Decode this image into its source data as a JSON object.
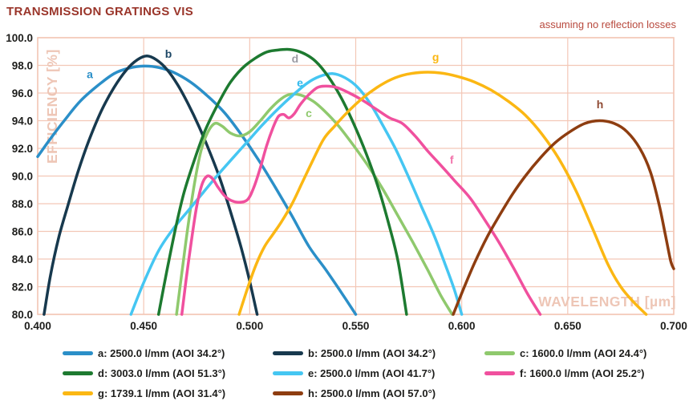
{
  "title": "TRANSMISSION GRATINGS VIS",
  "annotation": "assuming no reflection losses",
  "colors": {
    "title": "#9a352a",
    "annotation": "#b8493d",
    "grid": "#f3c7b6",
    "axis_title": "#eec6b6",
    "tick_label": "#1d1d1b"
  },
  "chart_data": {
    "type": "line",
    "title": "TRANSMISSION GRATINGS VIS",
    "annotation": "assuming no reflection losses",
    "xlabel": "WAVELENGTH [µm]",
    "ylabel": "EFFICIENCY [%]",
    "xlim": [
      0.4,
      0.7
    ],
    "ylim": [
      80.0,
      100.0
    ],
    "grid": true,
    "legend_position": "bottom",
    "x_ticks": [
      "0.400",
      "0.450",
      "0.500",
      "0.550",
      "0.600",
      "0.650",
      "0.700"
    ],
    "x_tick_values": [
      0.4,
      0.45,
      0.5,
      0.55,
      0.6,
      0.65,
      0.7
    ],
    "y_ticks": [
      "100.0",
      "98.0",
      "96.0",
      "94.0",
      "92.0",
      "90.0",
      "88.0",
      "86.0",
      "84.0",
      "82.0",
      "80.0"
    ],
    "y_tick_values": [
      100,
      98,
      96,
      94,
      92,
      90,
      88,
      86,
      84,
      82,
      80
    ],
    "series": [
      {
        "letter": "a",
        "name": "a: 2500.0 l/mm (AOI 34.2°)",
        "color": "#2B8FC8",
        "label_color": "#2B8FC8",
        "label_x": 0.4246,
        "label_y": 97.35,
        "points": [
          [
            0.4,
            91.4
          ],
          [
            0.406,
            92.7
          ],
          [
            0.413,
            94.1
          ],
          [
            0.42,
            95.4
          ],
          [
            0.428,
            96.5
          ],
          [
            0.436,
            97.4
          ],
          [
            0.443,
            97.8
          ],
          [
            0.45,
            97.95
          ],
          [
            0.457,
            97.85
          ],
          [
            0.464,
            97.5
          ],
          [
            0.472,
            96.8
          ],
          [
            0.48,
            95.8
          ],
          [
            0.488,
            94.6
          ],
          [
            0.496,
            93.0
          ],
          [
            0.504,
            91.2
          ],
          [
            0.512,
            89.2
          ],
          [
            0.52,
            87.1
          ],
          [
            0.528,
            84.9
          ],
          [
            0.536,
            83.2
          ],
          [
            0.544,
            81.4
          ],
          [
            0.55,
            80.0
          ]
        ]
      },
      {
        "letter": "b",
        "name": "b: 2500.0 l/mm (AOI 34.2°)",
        "color": "#17394E",
        "label_color": "#1D4766",
        "label_x": 0.4617,
        "label_y": 98.85,
        "points": [
          [
            0.403,
            80.0
          ],
          [
            0.406,
            82.8
          ],
          [
            0.41,
            85.6
          ],
          [
            0.4145,
            88.0
          ],
          [
            0.419,
            90.3
          ],
          [
            0.424,
            92.5
          ],
          [
            0.43,
            94.7
          ],
          [
            0.436,
            96.4
          ],
          [
            0.442,
            97.7
          ],
          [
            0.447,
            98.4
          ],
          [
            0.4515,
            98.68
          ],
          [
            0.456,
            98.4
          ],
          [
            0.461,
            97.7
          ],
          [
            0.466,
            96.6
          ],
          [
            0.471,
            95.2
          ],
          [
            0.476,
            93.6
          ],
          [
            0.481,
            91.8
          ],
          [
            0.486,
            89.8
          ],
          [
            0.491,
            87.4
          ],
          [
            0.496,
            84.8
          ],
          [
            0.5,
            82.4
          ],
          [
            0.5035,
            80.0
          ]
        ]
      },
      {
        "letter": "c",
        "name": "c: 1600.0 l/mm (AOI 24.4°)",
        "color": "#8FC96D",
        "label_color": "#8FC96D",
        "label_x": 0.5279,
        "label_y": 94.55,
        "points": [
          [
            0.4655,
            80.0
          ],
          [
            0.468,
            83.0
          ],
          [
            0.471,
            86.5
          ],
          [
            0.474,
            89.5
          ],
          [
            0.477,
            91.8
          ],
          [
            0.48,
            93.1
          ],
          [
            0.4835,
            93.8
          ],
          [
            0.487,
            93.6
          ],
          [
            0.491,
            93.1
          ],
          [
            0.4955,
            92.9
          ],
          [
            0.5,
            93.2
          ],
          [
            0.505,
            94.0
          ],
          [
            0.51,
            94.9
          ],
          [
            0.515,
            95.6
          ],
          [
            0.519,
            95.9
          ],
          [
            0.524,
            95.85
          ],
          [
            0.53,
            95.4
          ],
          [
            0.536,
            94.6
          ],
          [
            0.542,
            93.6
          ],
          [
            0.549,
            92.2
          ],
          [
            0.556,
            90.7
          ],
          [
            0.563,
            89.0
          ],
          [
            0.57,
            87.1
          ],
          [
            0.577,
            85.2
          ],
          [
            0.584,
            83.2
          ],
          [
            0.59,
            81.4
          ],
          [
            0.5955,
            80.0
          ]
        ]
      },
      {
        "letter": "e",
        "name": "e: 2500.0 l/mm (AOI 41.7°)",
        "color": "#45C6F2",
        "label_color": "#2FB9EE",
        "label_x": 0.5237,
        "label_y": 96.75,
        "points": [
          [
            0.444,
            80.0
          ],
          [
            0.45,
            82.3
          ],
          [
            0.457,
            84.6
          ],
          [
            0.464,
            86.2
          ],
          [
            0.471,
            87.5
          ],
          [
            0.478,
            88.8
          ],
          [
            0.4845,
            90.0
          ],
          [
            0.492,
            91.3
          ],
          [
            0.499,
            92.5
          ],
          [
            0.506,
            93.7
          ],
          [
            0.513,
            94.8
          ],
          [
            0.52,
            95.8
          ],
          [
            0.527,
            96.7
          ],
          [
            0.533,
            97.2
          ],
          [
            0.539,
            97.4
          ],
          [
            0.545,
            97.1
          ],
          [
            0.551,
            96.4
          ],
          [
            0.557,
            95.2
          ],
          [
            0.563,
            93.6
          ],
          [
            0.569,
            91.9
          ],
          [
            0.575,
            89.9
          ],
          [
            0.581,
            87.8
          ],
          [
            0.587,
            85.7
          ],
          [
            0.592,
            83.7
          ],
          [
            0.5965,
            81.8
          ],
          [
            0.6,
            80.0
          ]
        ]
      },
      {
        "letter": "d",
        "name": "d: 3003.0 l/mm (AOI 51.3°)",
        "color": "#1D7A30",
        "label_color": "#9B9BA3",
        "label_x": 0.5214,
        "label_y": 98.5,
        "points": [
          [
            0.457,
            80.0
          ],
          [
            0.461,
            83.2
          ],
          [
            0.465,
            86.2
          ],
          [
            0.469,
            88.8
          ],
          [
            0.474,
            91.2
          ],
          [
            0.479,
            93.3
          ],
          [
            0.485,
            95.2
          ],
          [
            0.491,
            96.8
          ],
          [
            0.498,
            98.0
          ],
          [
            0.507,
            98.9
          ],
          [
            0.513,
            99.1
          ],
          [
            0.519,
            99.15
          ],
          [
            0.525,
            98.9
          ],
          [
            0.531,
            98.3
          ],
          [
            0.537,
            97.2
          ],
          [
            0.543,
            95.7
          ],
          [
            0.549,
            93.8
          ],
          [
            0.555,
            91.6
          ],
          [
            0.561,
            89.0
          ],
          [
            0.566,
            86.3
          ],
          [
            0.57,
            83.8
          ],
          [
            0.574,
            80.0
          ]
        ]
      },
      {
        "letter": "f",
        "name": "f: 1600.0 l/mm (AOI 25.2°)",
        "color": "#F0509E",
        "label_color": "#F273AB",
        "label_x": 0.5953,
        "label_y": 91.2,
        "points": [
          [
            0.468,
            80.0
          ],
          [
            0.47,
            82.5
          ],
          [
            0.4725,
            85.3
          ],
          [
            0.475,
            87.8
          ],
          [
            0.4775,
            89.4
          ],
          [
            0.48,
            90.0
          ],
          [
            0.4825,
            89.8
          ],
          [
            0.485,
            89.2
          ],
          [
            0.488,
            88.6
          ],
          [
            0.491,
            88.25
          ],
          [
            0.495,
            88.1
          ],
          [
            0.499,
            88.3
          ],
          [
            0.502,
            89.2
          ],
          [
            0.505,
            90.6
          ],
          [
            0.508,
            92.2
          ],
          [
            0.511,
            93.5
          ],
          [
            0.5135,
            94.3
          ],
          [
            0.516,
            94.45
          ],
          [
            0.5185,
            94.2
          ],
          [
            0.521,
            94.5
          ],
          [
            0.524,
            95.2
          ],
          [
            0.528,
            95.9
          ],
          [
            0.532,
            96.4
          ],
          [
            0.536,
            96.5
          ],
          [
            0.541,
            96.4
          ],
          [
            0.547,
            96.0
          ],
          [
            0.553,
            95.5
          ],
          [
            0.56,
            94.8
          ],
          [
            0.566,
            94.2
          ],
          [
            0.572,
            93.8
          ],
          [
            0.578,
            92.9
          ],
          [
            0.584,
            91.8
          ],
          [
            0.59,
            90.8
          ],
          [
            0.597,
            89.6
          ],
          [
            0.604,
            88.4
          ],
          [
            0.611,
            86.8
          ],
          [
            0.618,
            85.1
          ],
          [
            0.625,
            83.2
          ],
          [
            0.631,
            81.5
          ],
          [
            0.637,
            80.0
          ]
        ]
      },
      {
        "letter": "g",
        "name": "g: 1739.1 l/mm (AOI 31.4°)",
        "color": "#FBB713",
        "label_color": "#FBB713",
        "label_x": 0.5877,
        "label_y": 98.6,
        "points": [
          [
            0.495,
            80.0
          ],
          [
            0.499,
            81.9
          ],
          [
            0.503,
            83.6
          ],
          [
            0.507,
            84.9
          ],
          [
            0.511,
            85.8
          ],
          [
            0.515,
            86.7
          ],
          [
            0.52,
            88.0
          ],
          [
            0.525,
            89.6
          ],
          [
            0.53,
            91.2
          ],
          [
            0.535,
            92.7
          ],
          [
            0.54,
            93.6
          ],
          [
            0.546,
            94.6
          ],
          [
            0.553,
            95.6
          ],
          [
            0.56,
            96.4
          ],
          [
            0.567,
            97.0
          ],
          [
            0.574,
            97.35
          ],
          [
            0.582,
            97.5
          ],
          [
            0.59,
            97.45
          ],
          [
            0.598,
            97.2
          ],
          [
            0.606,
            96.8
          ],
          [
            0.614,
            96.2
          ],
          [
            0.622,
            95.4
          ],
          [
            0.63,
            94.4
          ],
          [
            0.638,
            93.0
          ],
          [
            0.646,
            91.2
          ],
          [
            0.654,
            88.9
          ],
          [
            0.662,
            86.1
          ],
          [
            0.669,
            83.6
          ],
          [
            0.675,
            82.0
          ],
          [
            0.681,
            80.9
          ],
          [
            0.687,
            80.0
          ]
        ]
      },
      {
        "letter": "h",
        "name": "h: 2500.0 l/mm (AOI 57.0°)",
        "color": "#8E3D10",
        "label_color": "#8F4A33",
        "label_x": 0.6652,
        "label_y": 95.2,
        "points": [
          [
            0.596,
            80.0
          ],
          [
            0.601,
            81.9
          ],
          [
            0.606,
            83.7
          ],
          [
            0.612,
            85.6
          ],
          [
            0.618,
            87.2
          ],
          [
            0.624,
            88.7
          ],
          [
            0.63,
            90.0
          ],
          [
            0.637,
            91.3
          ],
          [
            0.644,
            92.4
          ],
          [
            0.651,
            93.2
          ],
          [
            0.658,
            93.8
          ],
          [
            0.665,
            94.0
          ],
          [
            0.672,
            93.8
          ],
          [
            0.678,
            93.2
          ],
          [
            0.684,
            92.0
          ],
          [
            0.689,
            90.3
          ],
          [
            0.693,
            88.0
          ],
          [
            0.696,
            85.8
          ],
          [
            0.6985,
            83.9
          ],
          [
            0.7,
            83.3
          ]
        ]
      }
    ]
  },
  "legend": {
    "items": [
      {
        "letter": "a",
        "label": "a: 2500.0 l/mm (AOI 34.2°)",
        "color": "#2B8FC8"
      },
      {
        "letter": "b",
        "label": "b: 2500.0 l/mm (AOI 34.2°)",
        "color": "#17394E"
      },
      {
        "letter": "c",
        "label": "c: 1600.0 l/mm (AOI 24.4°)",
        "color": "#8FC96D"
      },
      {
        "letter": "d",
        "label": "d: 3003.0 l/mm (AOI 51.3°)",
        "color": "#1D7A30"
      },
      {
        "letter": "e",
        "label": "e: 2500.0 l/mm (AOI 41.7°)",
        "color": "#45C6F2"
      },
      {
        "letter": "f",
        "label": "f: 1600.0 l/mm (AOI 25.2°)",
        "color": "#F0509E"
      },
      {
        "letter": "g",
        "label": "g: 1739.1 l/mm (AOI 31.4°)",
        "color": "#FBB713"
      },
      {
        "letter": "h",
        "label": "h: 2500.0 l/mm (AOI 57.0°)",
        "color": "#8E3D10"
      }
    ]
  }
}
